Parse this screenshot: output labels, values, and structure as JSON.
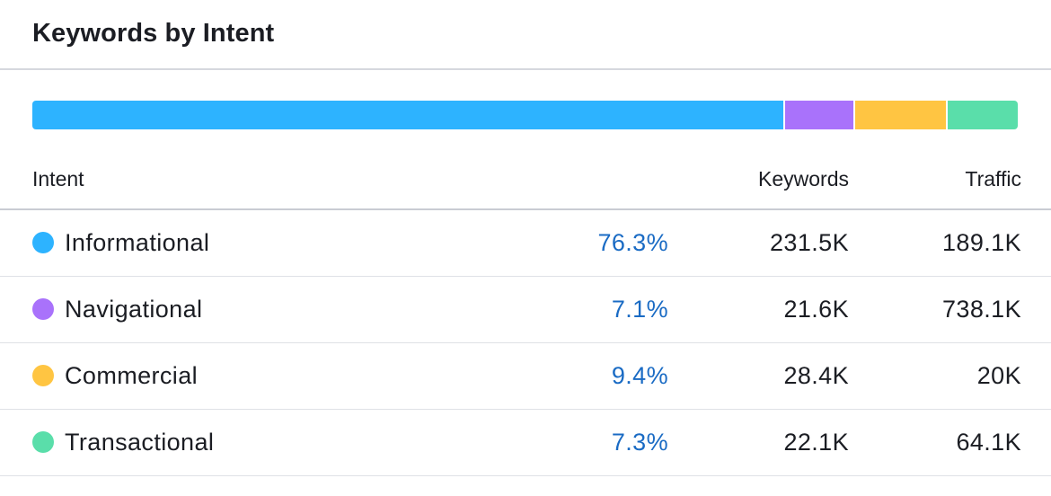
{
  "widget": {
    "title": "Keywords by Intent"
  },
  "table": {
    "headers": {
      "intent": "Intent",
      "keywords": "Keywords",
      "traffic": "Traffic"
    },
    "rows": [
      {
        "name": "Informational",
        "share": "76.3%",
        "share_value": 76.3,
        "keywords": "231.5K",
        "traffic": "189.1K",
        "color": "#2db3ff"
      },
      {
        "name": "Navigational",
        "share": "7.1%",
        "share_value": 7.1,
        "keywords": "21.6K",
        "traffic": "738.1K",
        "color": "#a972fb"
      },
      {
        "name": "Commercial",
        "share": "9.4%",
        "share_value": 9.4,
        "keywords": "28.4K",
        "traffic": "20K",
        "color": "#ffc542"
      },
      {
        "name": "Transactional",
        "share": "7.3%",
        "share_value": 7.3,
        "keywords": "22.1K",
        "traffic": "64.1K",
        "color": "#5adeaa"
      }
    ]
  }
}
